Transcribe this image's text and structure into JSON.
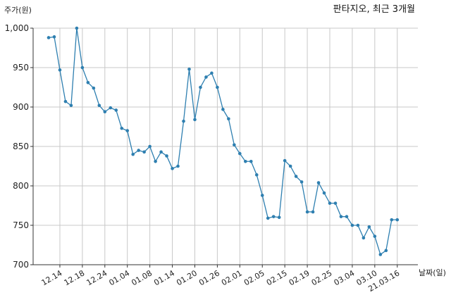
{
  "chart_data": {
    "type": "line",
    "title": "판타지오, 최근 3개월",
    "xlabel": "날짜(일)",
    "ylabel": "주가(원)",
    "ylim": [
      700,
      1000
    ],
    "yticks": [
      "700",
      "750",
      "800",
      "850",
      "900",
      "950",
      "1,000"
    ],
    "ytick_values": [
      700,
      750,
      800,
      850,
      900,
      950,
      1000
    ],
    "xticks": [
      {
        "label": "12.14",
        "index": 2
      },
      {
        "label": "12.18",
        "index": 6
      },
      {
        "label": "12.24",
        "index": 10
      },
      {
        "label": "01.04",
        "index": 14
      },
      {
        "label": "01.08",
        "index": 18
      },
      {
        "label": "01.14",
        "index": 22
      },
      {
        "label": "01.20",
        "index": 26
      },
      {
        "label": "01.26",
        "index": 30
      },
      {
        "label": "02.01",
        "index": 34
      },
      {
        "label": "02.05",
        "index": 38
      },
      {
        "label": "02.15",
        "index": 42
      },
      {
        "label": "02.19",
        "index": 46
      },
      {
        "label": "02.25",
        "index": 50
      },
      {
        "label": "03.04",
        "index": 54
      },
      {
        "label": "03.10",
        "index": 58
      },
      {
        "label": "21.03.16",
        "index": 62
      }
    ],
    "grid": true,
    "series": [
      {
        "values": [
          988,
          989,
          947,
          907,
          902,
          1000,
          950,
          931,
          924,
          902,
          894,
          899,
          896,
          873,
          870,
          840,
          845,
          843,
          850,
          831,
          843,
          838,
          822,
          825,
          882,
          948,
          884,
          925,
          938,
          943,
          925,
          897,
          885,
          852,
          841,
          831,
          831,
          814,
          788,
          759,
          761,
          760,
          832,
          825,
          812,
          805,
          767,
          767,
          804,
          791,
          778,
          778,
          761,
          761,
          750,
          750,
          734,
          748,
          736,
          713,
          718,
          757,
          757
        ],
        "color": "#2e7fb0"
      }
    ]
  }
}
